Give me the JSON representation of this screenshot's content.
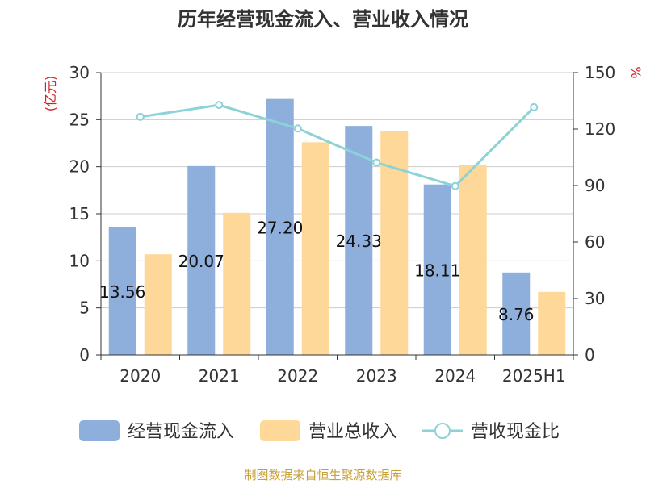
{
  "title": "历年经营现金流入、营业收入情况",
  "source": "制图数据来自恒生聚源数据库",
  "colors": {
    "cash_inflow": "#8eaedc",
    "revenue": "#fed899",
    "ratio": "#8cd3d8",
    "axis": "#333333",
    "grid": "#cccccc",
    "unit_label": "#d22222",
    "source_text": "#c9a038"
  },
  "chart_data": {
    "type": "bar",
    "title": "历年经营现金流入、营业收入情况",
    "categories": [
      "2020",
      "2021",
      "2022",
      "2023",
      "2024",
      "2025H1"
    ],
    "series": [
      {
        "name": "经营现金流入",
        "type": "bar",
        "axis": "left",
        "values": [
          13.56,
          20.07,
          27.2,
          24.33,
          18.11,
          8.76
        ],
        "labels": [
          "13.56",
          "20.07",
          "27.20",
          "24.33",
          "18.11",
          "8.76"
        ]
      },
      {
        "name": "营业总收入",
        "type": "bar",
        "axis": "left",
        "values": [
          10.7,
          15.1,
          22.6,
          23.8,
          20.2,
          6.7
        ]
      },
      {
        "name": "营收现金比",
        "type": "line",
        "axis": "right",
        "values": [
          126.5,
          132.8,
          120.3,
          102.2,
          89.7,
          131.6
        ]
      }
    ],
    "y_left": {
      "label": "(亿元)",
      "min": 0,
      "max": 30,
      "ticks": [
        0,
        5,
        10,
        15,
        20,
        25,
        30
      ]
    },
    "y_right": {
      "label": "%",
      "min": 0,
      "max": 150,
      "ticks": [
        0,
        30,
        60,
        90,
        120,
        150
      ]
    },
    "grid": true,
    "legend_position": "bottom"
  }
}
